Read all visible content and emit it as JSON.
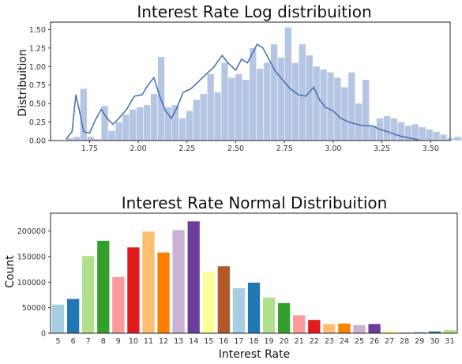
{
  "chart_data": [
    {
      "type": "bar",
      "title": "Interest Rate Log distribuition",
      "xlabel": "",
      "ylabel": "Distribuition",
      "xlim": [
        1.55,
        3.6
      ],
      "ylim": [
        0,
        1.6
      ],
      "grid": false,
      "bar_color": "#b4c6e4",
      "line_color": "#4c72b0",
      "x_ticks": [
        "1.75",
        "2.00",
        "2.25",
        "2.50",
        "2.75",
        "3.00",
        "3.25",
        "3.50"
      ],
      "y_ticks": [
        "0.00",
        "0.25",
        "0.50",
        "0.75",
        "1.00",
        "1.25",
        "1.50"
      ],
      "bin_start": 1.63,
      "bin_width": 0.0362,
      "values": [
        0.03,
        0.05,
        0.7,
        0.05,
        0.02,
        0.47,
        0.13,
        0.25,
        0.35,
        0.42,
        0.45,
        0.48,
        0.63,
        1.13,
        0.45,
        0.48,
        0.3,
        0.4,
        0.55,
        0.63,
        0.9,
        0.65,
        1.05,
        0.85,
        0.9,
        0.82,
        1.25,
        0.97,
        1.05,
        1.3,
        1.12,
        1.53,
        1.05,
        1.3,
        1.15,
        1.0,
        0.96,
        0.92,
        0.85,
        0.72,
        0.92,
        0.5,
        0.82,
        0.2,
        0.3,
        0.33,
        0.3,
        0.25,
        0.2,
        0.22,
        0.18,
        0.15,
        0.12,
        0.08,
        0.03,
        0.05,
        0.02,
        0.03,
        0.1,
        0.03
      ],
      "kde": [
        [
          1.63,
          0.02
        ],
        [
          1.66,
          0.12
        ],
        [
          1.68,
          0.62
        ],
        [
          1.7,
          0.38
        ],
        [
          1.72,
          0.12
        ],
        [
          1.75,
          0.1
        ],
        [
          1.78,
          0.28
        ],
        [
          1.81,
          0.42
        ],
        [
          1.84,
          0.3
        ],
        [
          1.87,
          0.22
        ],
        [
          1.9,
          0.3
        ],
        [
          1.94,
          0.42
        ],
        [
          1.98,
          0.6
        ],
        [
          2.02,
          0.62
        ],
        [
          2.05,
          0.75
        ],
        [
          2.08,
          0.85
        ],
        [
          2.11,
          0.6
        ],
        [
          2.14,
          0.4
        ],
        [
          2.17,
          0.3
        ],
        [
          2.2,
          0.45
        ],
        [
          2.23,
          0.65
        ],
        [
          2.27,
          0.7
        ],
        [
          2.31,
          0.8
        ],
        [
          2.35,
          0.9
        ],
        [
          2.39,
          1.0
        ],
        [
          2.43,
          1.15
        ],
        [
          2.46,
          1.05
        ],
        [
          2.5,
          0.95
        ],
        [
          2.53,
          1.1
        ],
        [
          2.56,
          1.05
        ],
        [
          2.58,
          1.15
        ],
        [
          2.61,
          1.3
        ],
        [
          2.64,
          1.25
        ],
        [
          2.67,
          1.1
        ],
        [
          2.7,
          0.95
        ],
        [
          2.74,
          0.82
        ],
        [
          2.78,
          0.7
        ],
        [
          2.82,
          0.62
        ],
        [
          2.86,
          0.6
        ],
        [
          2.9,
          0.72
        ],
        [
          2.93,
          0.55
        ],
        [
          2.96,
          0.45
        ],
        [
          3.0,
          0.4
        ],
        [
          3.04,
          0.3
        ],
        [
          3.08,
          0.25
        ],
        [
          3.12,
          0.22
        ],
        [
          3.16,
          0.2
        ],
        [
          3.2,
          0.2
        ],
        [
          3.24,
          0.15
        ],
        [
          3.28,
          0.12
        ],
        [
          3.32,
          0.08
        ],
        [
          3.36,
          0.05
        ],
        [
          3.4,
          0.03
        ],
        [
          3.44,
          0.01
        ]
      ]
    },
    {
      "type": "bar",
      "title": "Interest Rate Normal Distribuition",
      "xlabel": "Interest Rate",
      "ylabel": "Count",
      "ylim": [
        0,
        235000
      ],
      "grid": false,
      "y_ticks": [
        "0",
        "50000",
        "100000",
        "150000",
        "200000"
      ],
      "categories": [
        "5",
        "6",
        "7",
        "8",
        "9",
        "10",
        "11",
        "12",
        "13",
        "14",
        "15",
        "16",
        "17",
        "18",
        "19",
        "20",
        "21",
        "22",
        "23",
        "24",
        "25",
        "26",
        "27",
        "28",
        "29",
        "30",
        "31"
      ],
      "values": [
        56000,
        67000,
        151000,
        181000,
        110000,
        168000,
        199000,
        158000,
        202000,
        219000,
        120000,
        131000,
        88000,
        99000,
        70000,
        59000,
        35000,
        26000,
        18000,
        19000,
        16000,
        18000,
        5000,
        1000,
        3000,
        3500,
        6000
      ],
      "colors": [
        "#a6cee3",
        "#1f78b4",
        "#b2df8a",
        "#33a02c",
        "#fb9a99",
        "#e31a1c",
        "#fdbf6f",
        "#ff7f00",
        "#cab2d6",
        "#6a3d9a",
        "#ffff99",
        "#b15928",
        "#a6cee3",
        "#1f78b4",
        "#b2df8a",
        "#33a02c",
        "#fb9a99",
        "#e31a1c",
        "#fdbf6f",
        "#ff7f00",
        "#cab2d6",
        "#6a3d9a",
        "#ffff99",
        "#b15928",
        "#a6cee3",
        "#1f78b4",
        "#b2df8a"
      ]
    }
  ]
}
